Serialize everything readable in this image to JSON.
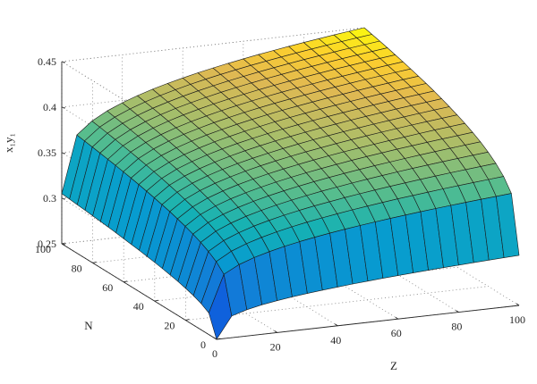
{
  "chart_data": {
    "type": "surface",
    "title": "",
    "xlabel": "Z",
    "ylabel": "N",
    "zlabel": "x₁y₁",
    "xlim": [
      0,
      100
    ],
    "ylim": [
      0,
      100
    ],
    "zlim": [
      0.25,
      0.45
    ],
    "xticks": [
      "0",
      "20",
      "40",
      "60",
      "80",
      "100"
    ],
    "yticks": [
      "0",
      "20",
      "40",
      "60",
      "80",
      "100"
    ],
    "zticks": [
      "0.25",
      "0.3",
      "0.35",
      "0.4",
      "0.45"
    ],
    "grid": true,
    "box": true,
    "colormap": "parula",
    "grid_points": 21,
    "x": [
      0,
      5,
      10,
      15,
      20,
      25,
      30,
      35,
      40,
      45,
      50,
      55,
      60,
      65,
      70,
      75,
      80,
      85,
      90,
      95,
      100
    ],
    "y": [
      0,
      5,
      10,
      15,
      20,
      25,
      30,
      35,
      40,
      45,
      50,
      55,
      60,
      65,
      70,
      75,
      80,
      85,
      90,
      95,
      100
    ],
    "corner_values": {
      "z0_n0": 0.25,
      "z100_n0": 0.305,
      "z0_n100": 0.305,
      "z100_n100": 0.45
    }
  },
  "colors": {
    "background": "#ffffff",
    "axis": "#262626",
    "grid": "#7f7f7f",
    "edge": "#1a1a1a"
  }
}
